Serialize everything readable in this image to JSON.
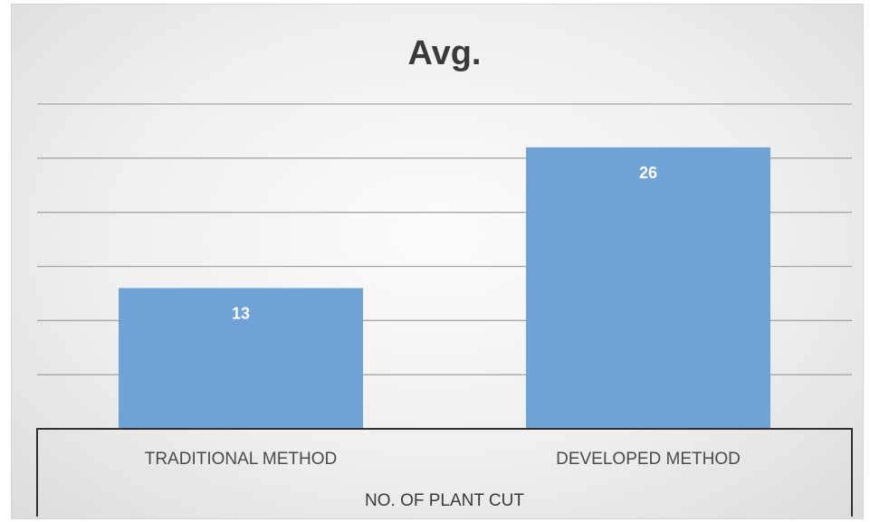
{
  "chart_data": {
    "type": "bar",
    "title": "Avg.",
    "group_label": "NO. OF PLANT CUT",
    "categories": [
      "TRADITIONAL METHOD",
      "DEVELOPED METHOD"
    ],
    "values": [
      13,
      26
    ],
    "ylim": [
      0,
      30
    ],
    "grid": true,
    "bar_color": "#6fa3d6"
  }
}
